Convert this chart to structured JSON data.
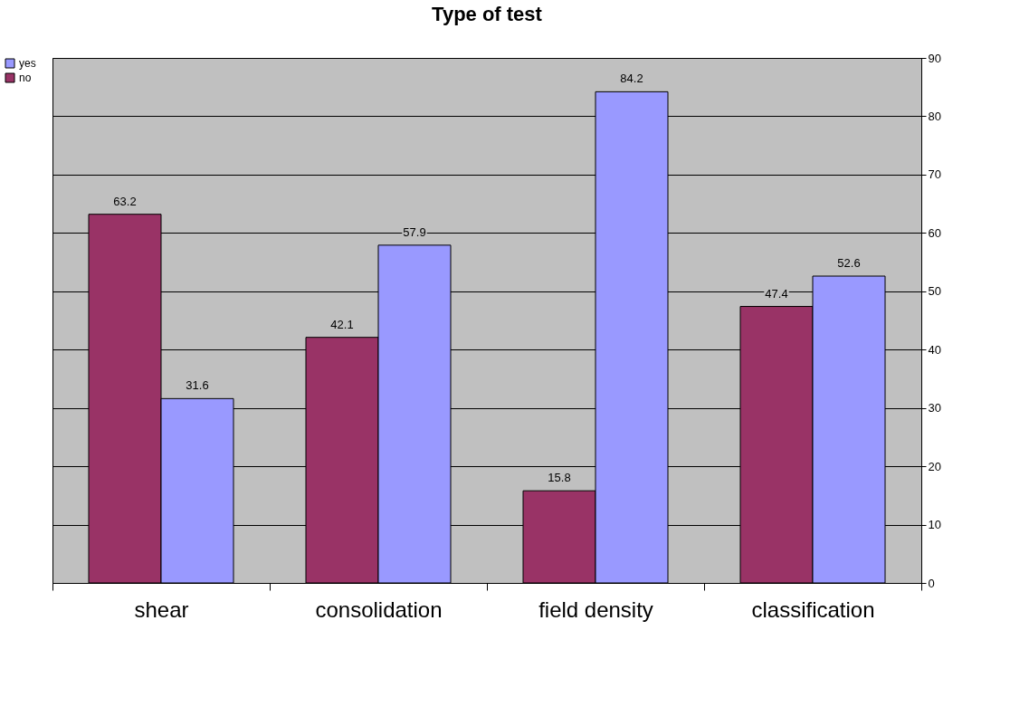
{
  "chart_data": {
    "type": "bar",
    "title": "Type of test",
    "categories": [
      "shear",
      "consolidation",
      "field density",
      "classification"
    ],
    "series": [
      {
        "name": "no",
        "color": "#993366",
        "values": [
          63.2,
          42.1,
          15.8,
          47.4
        ]
      },
      {
        "name": "yes",
        "color": "#9999ff",
        "values": [
          31.6,
          57.9,
          84.2,
          52.6
        ]
      }
    ],
    "ylim": [
      0,
      90
    ],
    "yticks": [
      0,
      10,
      20,
      30,
      40,
      50,
      60,
      70,
      80,
      90
    ],
    "grid": "y",
    "legend": "left",
    "data_labels": true
  }
}
